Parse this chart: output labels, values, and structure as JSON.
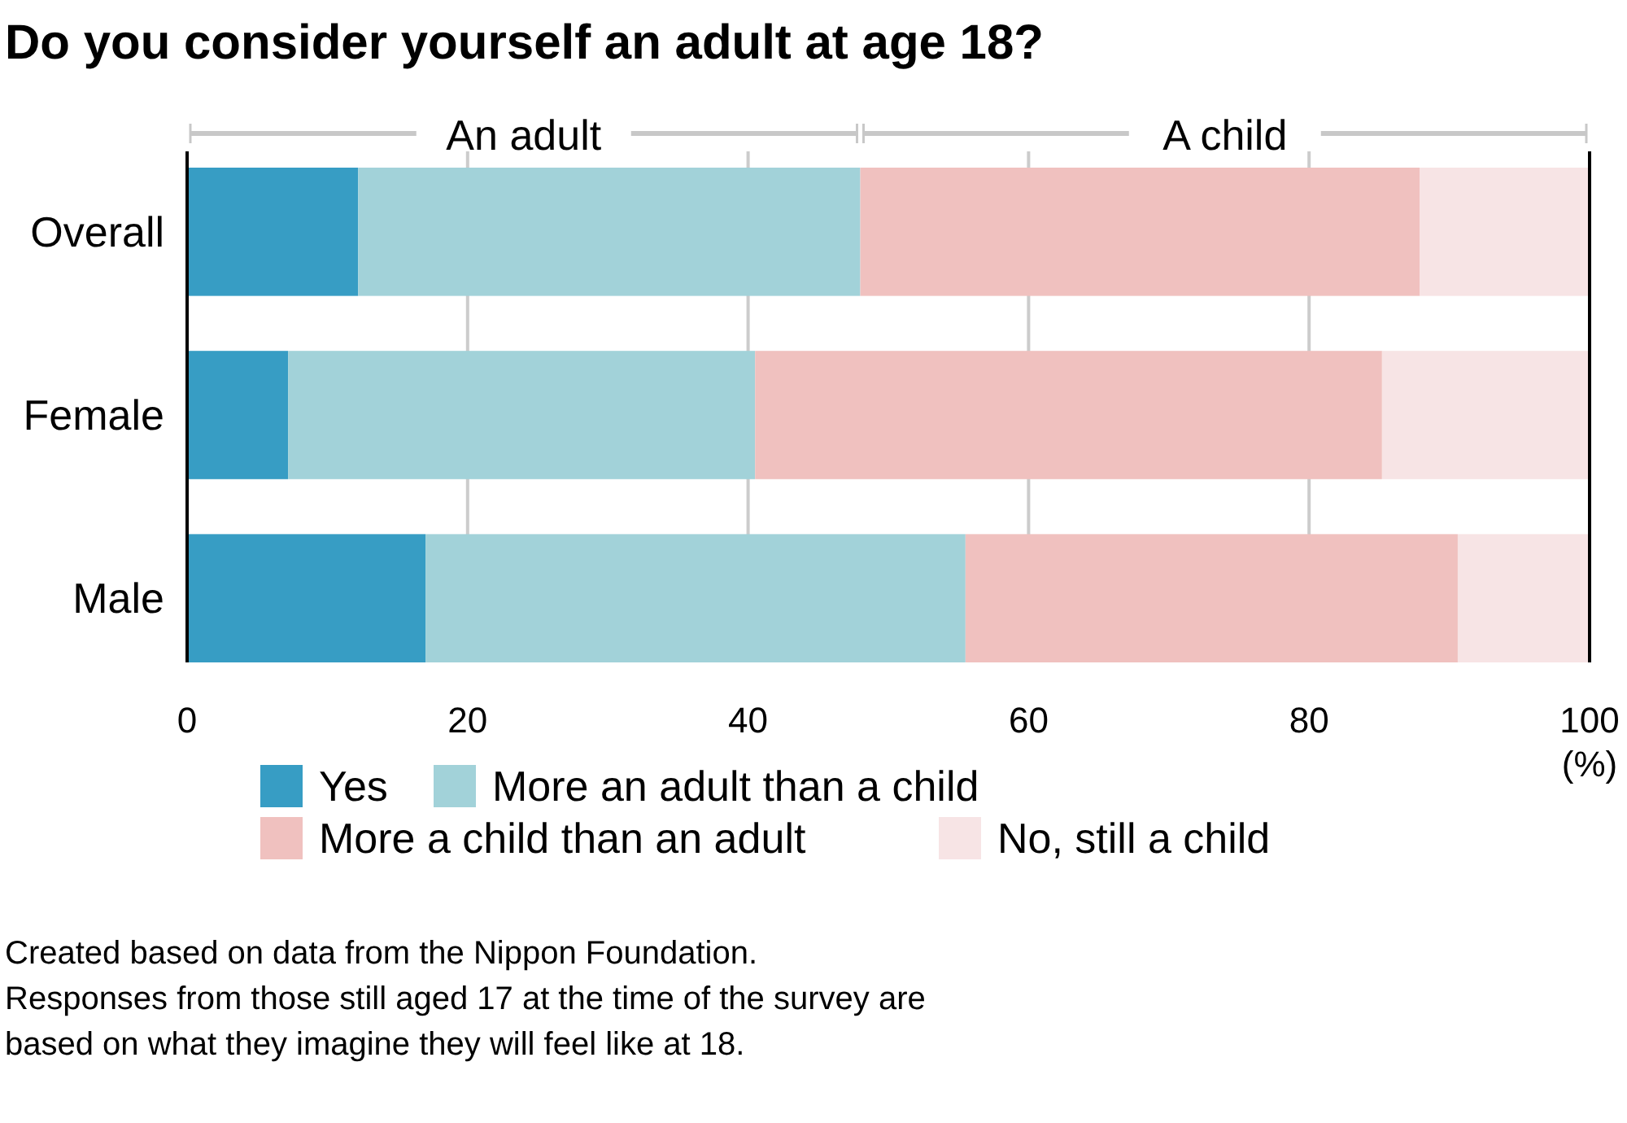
{
  "chart_data": {
    "type": "bar",
    "orientation": "horizontal",
    "stacked": true,
    "title": "Do you consider yourself an adult at age 18?",
    "xlabel": "(%)",
    "categories": [
      "Overall",
      "Female",
      "Male"
    ],
    "series": [
      {
        "name": "Yes",
        "color": "#379dc4",
        "values": [
          12.2,
          7.2,
          17.0
        ]
      },
      {
        "name": "More an adult than a child",
        "color": "#a2d2d9",
        "values": [
          35.8,
          33.3,
          38.5
        ]
      },
      {
        "name": "More a child than an adult",
        "color": "#f0c1bf",
        "values": [
          39.9,
          44.7,
          35.1
        ]
      },
      {
        "name": "No, still a child",
        "color": "#f7e4e5",
        "values": [
          12.1,
          14.8,
          9.4
        ]
      }
    ],
    "xlim": [
      0,
      100
    ],
    "xticks": [
      0,
      20,
      40,
      60,
      80,
      100
    ],
    "grid": "x",
    "legend": "bottom",
    "annotations": [
      "An adult",
      "A child",
      "Created based on data from the Nippon Foundation.",
      "Responses from those still aged 17 at the time of the survey are",
      "based on what they imagine they will feel like at 18."
    ]
  }
}
